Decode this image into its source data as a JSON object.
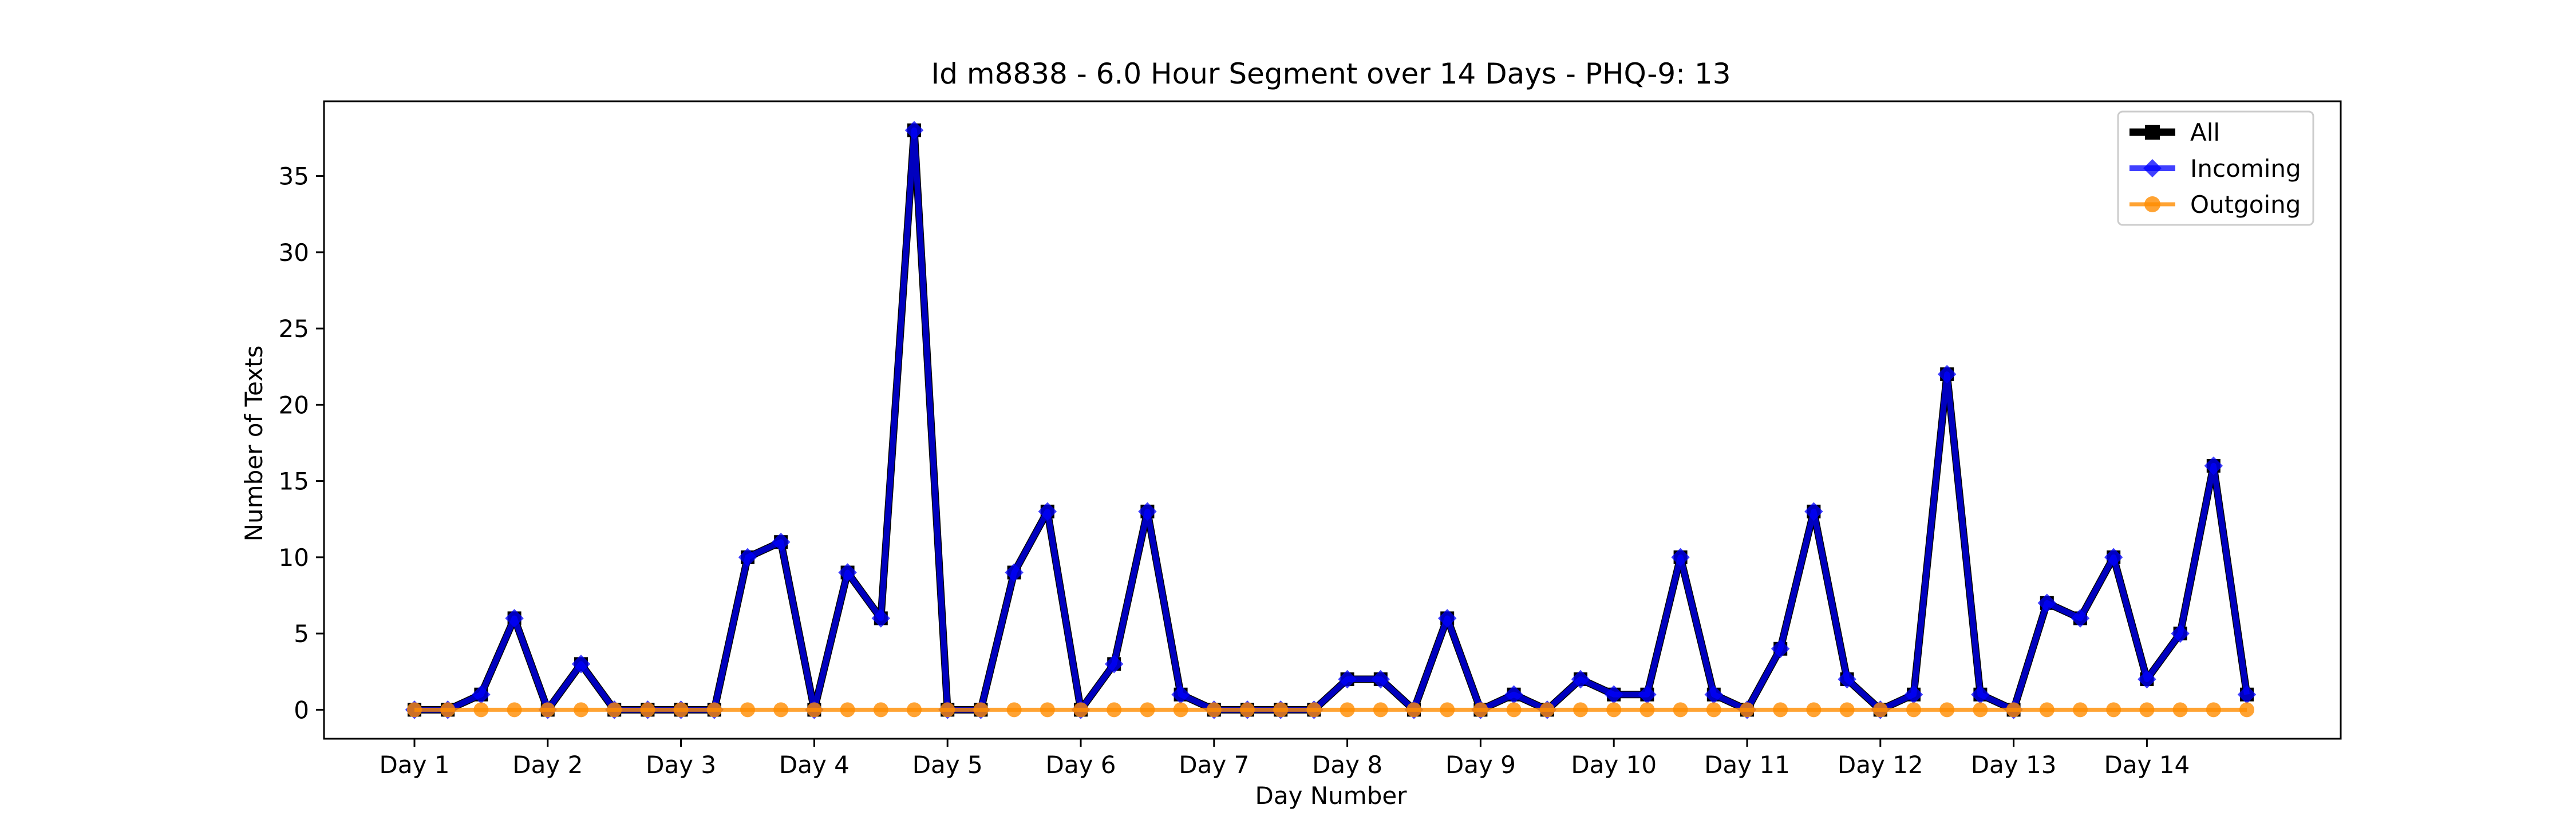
{
  "chart_data": {
    "type": "line",
    "title": "Id m8838 - 6.0 Hour Segment over 14 Days - PHQ-9: 13",
    "xlabel": "Day Number",
    "ylabel": "Number of Texts",
    "x_tick_labels": [
      "Day 1",
      "Day 2",
      "Day 3",
      "Day 4",
      "Day 5",
      "Day 6",
      "Day 7",
      "Day 8",
      "Day 9",
      "Day 10",
      "Day 11",
      "Day 12",
      "Day 13",
      "Day 14"
    ],
    "y_ticks": [
      0,
      5,
      10,
      15,
      20,
      25,
      30,
      35
    ],
    "ylim": [
      -1.9,
      39.9
    ],
    "grid": false,
    "legend_position": "top-right",
    "series": [
      {
        "name": "All",
        "color": "#000000",
        "marker": "square",
        "values": [
          0,
          0,
          1,
          6,
          0,
          3,
          0,
          0,
          0,
          0,
          10,
          11,
          0,
          9,
          6,
          38,
          0,
          0,
          9,
          13,
          0,
          3,
          13,
          1,
          0,
          0,
          0,
          0,
          2,
          2,
          0,
          6,
          0,
          1,
          0,
          2,
          1,
          1,
          10,
          1,
          0,
          4,
          13,
          2,
          0,
          1,
          22,
          1,
          0,
          7,
          6,
          10,
          2,
          5,
          16,
          1
        ]
      },
      {
        "name": "Incoming",
        "color": "#0000ff",
        "marker": "diamond",
        "values": [
          0,
          0,
          1,
          6,
          0,
          3,
          0,
          0,
          0,
          0,
          10,
          11,
          0,
          9,
          6,
          38,
          0,
          0,
          9,
          13,
          0,
          3,
          13,
          1,
          0,
          0,
          0,
          0,
          2,
          2,
          0,
          6,
          0,
          1,
          0,
          2,
          1,
          1,
          10,
          1,
          0,
          4,
          13,
          2,
          0,
          1,
          22,
          1,
          0,
          7,
          6,
          10,
          2,
          5,
          16,
          1
        ]
      },
      {
        "name": "Outgoing",
        "color": "#ff8c00",
        "marker": "circle",
        "values": [
          0,
          0,
          0,
          0,
          0,
          0,
          0,
          0,
          0,
          0,
          0,
          0,
          0,
          0,
          0,
          0,
          0,
          0,
          0,
          0,
          0,
          0,
          0,
          0,
          0,
          0,
          0,
          0,
          0,
          0,
          0,
          0,
          0,
          0,
          0,
          0,
          0,
          0,
          0,
          0,
          0,
          0,
          0,
          0,
          0,
          0,
          0,
          0,
          0,
          0,
          0,
          0,
          0,
          0,
          0,
          0
        ]
      }
    ]
  }
}
